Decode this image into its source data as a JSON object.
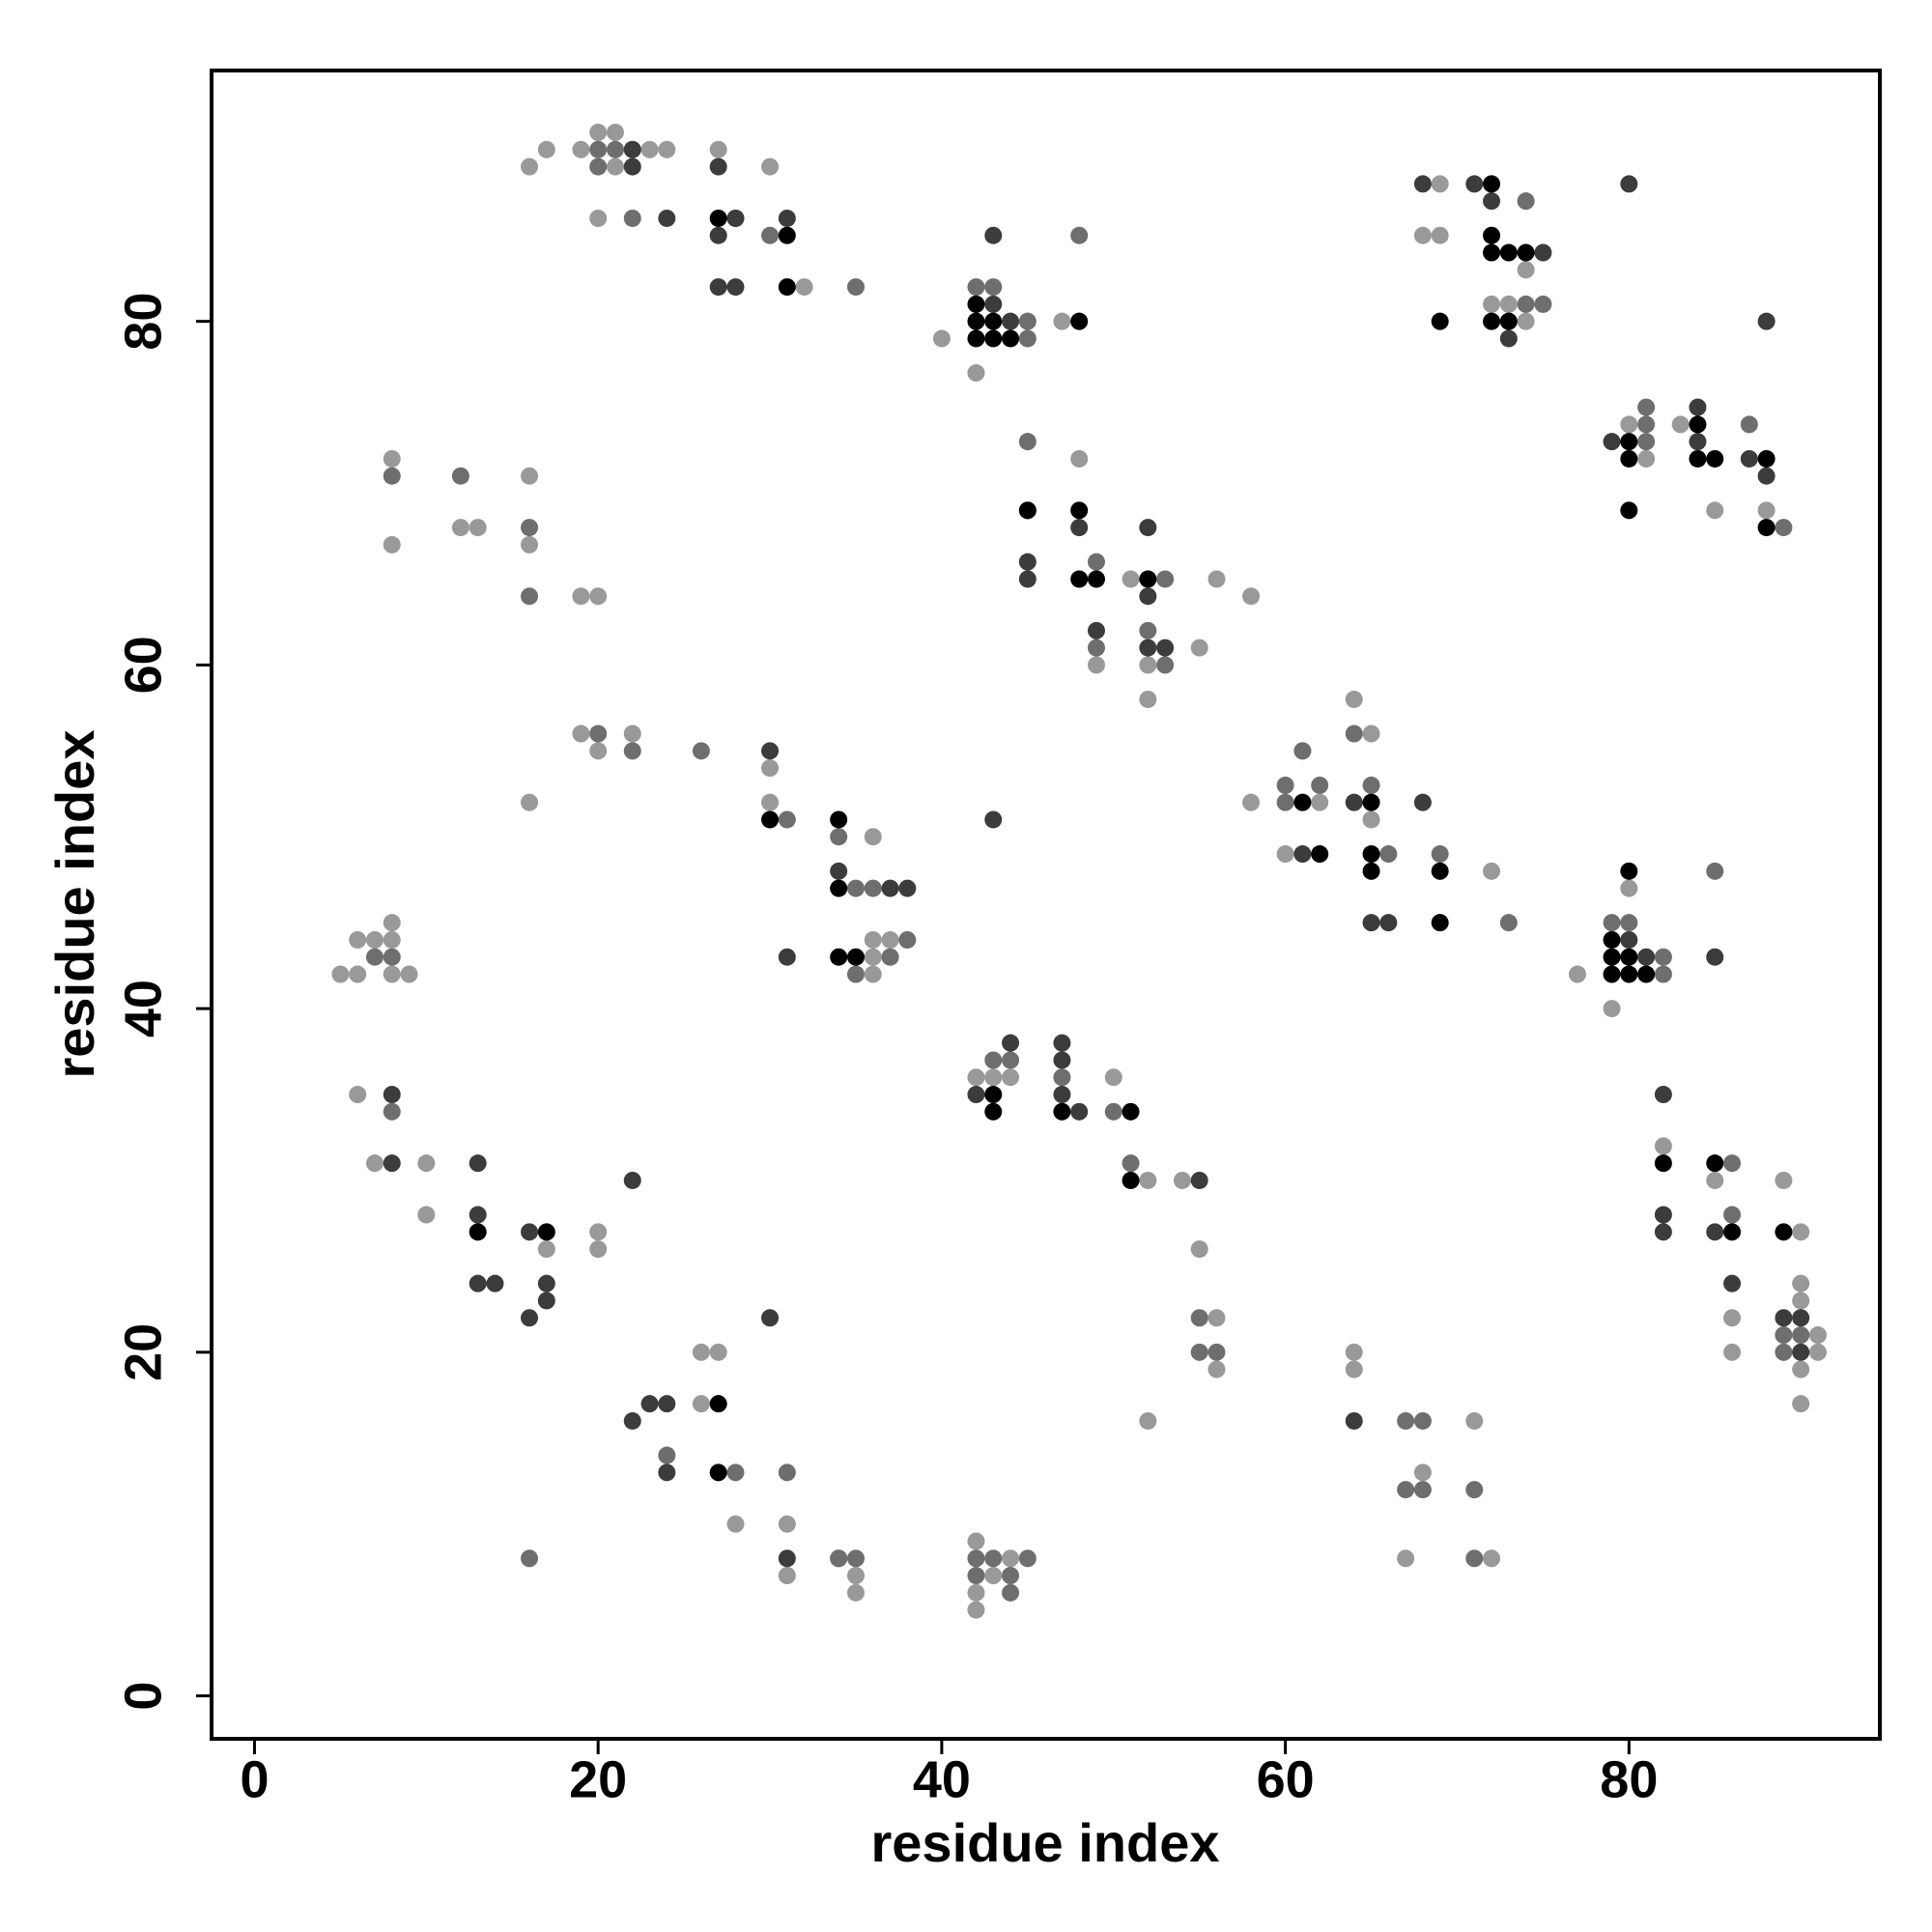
{
  "chart_data": {
    "type": "scatter",
    "x_label": "residue index",
    "y_label": "residue index",
    "xlim": [
      -2.5,
      94.6
    ],
    "ylim": [
      -2.5,
      94.6
    ],
    "xticks": [
      0,
      20,
      40,
      60,
      80
    ],
    "yticks": [
      0,
      20,
      40,
      60,
      80
    ],
    "series": [
      {
        "color": "#999999",
        "x": [
          16,
          17,
          19,
          20,
          21,
          21,
          23,
          24,
          20,
          27,
          30,
          32,
          40,
          42,
          47,
          69,
          68,
          69,
          74,
          72,
          73,
          74,
          80,
          81,
          83,
          85,
          88,
          48,
          49,
          51,
          52,
          52,
          55,
          56,
          58,
          8,
          8,
          12,
          13,
          16,
          16,
          19,
          20,
          19,
          20,
          22,
          16,
          30,
          30,
          36,
          36,
          37,
          36,
          37,
          36,
          6,
          7,
          8,
          8,
          5,
          6,
          8,
          9,
          58,
          62,
          61,
          60,
          64,
          65,
          65,
          72,
          77,
          80,
          79,
          42,
          43,
          44,
          50,
          52,
          54,
          6,
          7,
          10,
          10,
          17,
          20,
          20,
          26,
          27,
          26,
          28,
          31,
          31,
          35,
          35,
          42,
          44,
          43,
          42,
          42,
          82,
          85,
          86,
          86,
          89,
          90,
          90,
          90,
          91,
          91,
          90,
          90,
          55,
          56,
          56,
          52,
          64,
          64,
          68,
          71,
          67,
          72
        ],
        "y": [
          89,
          90,
          90,
          91,
          91,
          89,
          90,
          90,
          86,
          90,
          89,
          82,
          79,
          77,
          80,
          88,
          85,
          85,
          83,
          81,
          81,
          80,
          74,
          72,
          74,
          69,
          69,
          72,
          60,
          65,
          60,
          58,
          61,
          65,
          64,
          72,
          67,
          68,
          68,
          71,
          67,
          64,
          64,
          56,
          55,
          56,
          52,
          54,
          52,
          50,
          44,
          44,
          43,
          43,
          42,
          44,
          44,
          45,
          44,
          42,
          42,
          42,
          42,
          52,
          52,
          55,
          49,
          58,
          56,
          51,
          48,
          42,
          47,
          40,
          36,
          36,
          36,
          36,
          30,
          30,
          35,
          31,
          31,
          28,
          26,
          27,
          26,
          20,
          20,
          17,
          10,
          10,
          7,
          7,
          6,
          9,
          8,
          7,
          6,
          5,
          32,
          30,
          22,
          20,
          30,
          27,
          24,
          23,
          21,
          20,
          19,
          17,
          26,
          22,
          19,
          16,
          20,
          19,
          13,
          16,
          8,
          8
        ]
      },
      {
        "color": "#6e6e6e",
        "x": [
          20,
          20,
          21,
          22,
          22,
          28,
          30,
          35,
          42,
          43,
          45,
          45,
          48,
          74,
          74,
          75,
          81,
          81,
          81,
          89,
          87,
          45,
          49,
          49,
          53,
          52,
          53,
          8,
          12,
          16,
          16,
          20,
          22,
          26,
          31,
          34,
          35,
          36,
          38,
          37,
          35,
          7,
          8,
          60,
          62,
          60,
          61,
          64,
          65,
          66,
          69,
          73,
          79,
          80,
          82,
          82,
          85,
          43,
          44,
          47,
          50,
          51,
          8,
          34,
          86,
          86,
          89,
          90,
          89,
          24,
          28,
          31,
          16,
          34,
          35,
          42,
          43,
          45,
          42,
          44,
          44,
          55,
          55,
          56,
          67,
          68,
          67,
          68,
          71,
          71
        ],
        "y": [
          90,
          89,
          90,
          86,
          90,
          86,
          85,
          82,
          82,
          82,
          80,
          79,
          85,
          87,
          81,
          81,
          74,
          75,
          73,
          68,
          74,
          73,
          66,
          61,
          65,
          62,
          60,
          71,
          71,
          68,
          64,
          56,
          55,
          55,
          51,
          50,
          47,
          47,
          44,
          43,
          42,
          43,
          43,
          53,
          53,
          52,
          55,
          56,
          53,
          49,
          49,
          45,
          45,
          45,
          43,
          42,
          48,
          37,
          37,
          36,
          34,
          31,
          34,
          8,
          31,
          28,
          21,
          21,
          20,
          14,
          13,
          13,
          8,
          8,
          8,
          8,
          8,
          8,
          7,
          7,
          6,
          22,
          20,
          20,
          16,
          16,
          12,
          12,
          12,
          8
        ]
      },
      {
        "color": "#3c3c3c",
        "x": [
          22,
          22,
          24,
          27,
          27,
          28,
          27,
          28,
          31,
          43,
          43,
          44,
          68,
          71,
          72,
          75,
          73,
          80,
          88,
          79,
          84,
          84,
          87,
          88,
          45,
          48,
          45,
          45,
          49,
          52,
          52,
          52,
          53,
          30,
          31,
          34,
          37,
          38,
          61,
          64,
          68,
          65,
          66,
          43,
          80,
          81,
          85,
          44,
          42,
          47,
          47,
          47,
          48,
          55,
          8,
          8,
          13,
          13,
          13,
          14,
          16,
          17,
          17,
          16,
          22,
          30,
          22,
          23,
          24,
          24,
          31,
          82,
          82,
          82,
          85,
          86,
          89,
          90,
          90,
          64
        ],
        "y": [
          90,
          89,
          86,
          89,
          85,
          86,
          82,
          82,
          86,
          85,
          81,
          80,
          88,
          88,
          87,
          84,
          79,
          88,
          80,
          73,
          75,
          73,
          72,
          71,
          69,
          68,
          66,
          65,
          62,
          68,
          64,
          61,
          61,
          55,
          43,
          48,
          47,
          47,
          49,
          52,
          52,
          45,
          45,
          51,
          44,
          43,
          43,
          38,
          35,
          38,
          37,
          35,
          34,
          30,
          35,
          31,
          31,
          28,
          24,
          24,
          27,
          24,
          23,
          22,
          30,
          22,
          16,
          17,
          17,
          13,
          8,
          35,
          28,
          27,
          27,
          24,
          22,
          22,
          20,
          16
        ]
      },
      {
        "color": "#000000",
        "x": [
          27,
          31,
          31,
          42,
          42,
          43,
          42,
          43,
          44,
          48,
          72,
          72,
          72,
          73,
          74,
          69,
          72,
          73,
          80,
          80,
          80,
          84,
          84,
          85,
          88,
          88,
          45,
          48,
          48,
          49,
          52,
          30,
          34,
          34,
          34,
          35,
          61,
          62,
          65,
          65,
          65,
          69,
          69,
          80,
          79,
          79,
          80,
          79,
          80,
          81,
          43,
          43,
          47,
          51,
          51,
          13,
          17,
          27,
          27,
          82,
          85,
          86,
          89
        ],
        "y": [
          86,
          85,
          82,
          81,
          80,
          80,
          79,
          79,
          79,
          80,
          88,
          85,
          84,
          84,
          84,
          80,
          80,
          80,
          73,
          72,
          69,
          74,
          72,
          72,
          72,
          68,
          69,
          69,
          65,
          65,
          65,
          51,
          51,
          47,
          43,
          43,
          52,
          49,
          52,
          49,
          48,
          48,
          45,
          48,
          44,
          43,
          43,
          42,
          42,
          42,
          35,
          34,
          34,
          34,
          30,
          27,
          27,
          17,
          13,
          31,
          31,
          27,
          27
        ]
      }
    ]
  }
}
